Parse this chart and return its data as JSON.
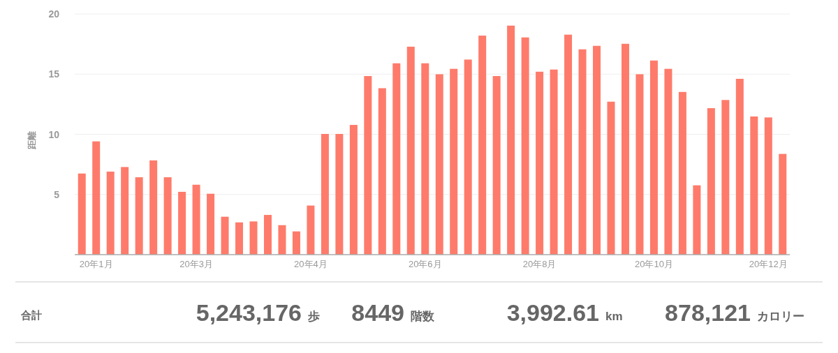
{
  "chart_data": {
    "type": "bar",
    "ylabel": "距離",
    "categories": [
      null,
      "20年1月",
      null,
      null,
      null,
      null,
      null,
      null,
      "20年3月",
      null,
      null,
      null,
      null,
      null,
      null,
      null,
      "20年4月",
      null,
      null,
      null,
      null,
      null,
      null,
      null,
      "20年6月",
      null,
      null,
      null,
      null,
      null,
      null,
      null,
      "20年8月",
      null,
      null,
      null,
      null,
      null,
      null,
      null,
      "20年10月",
      null,
      null,
      null,
      null,
      null,
      null,
      null,
      "20年12月",
      null
    ],
    "values": [
      6.74,
      9.41,
      6.9,
      7.28,
      6.43,
      7.83,
      6.43,
      5.22,
      5.81,
      5.06,
      3.15,
      2.68,
      2.76,
      3.3,
      2.45,
      1.93,
      4.08,
      10.03,
      10.03,
      10.78,
      14.84,
      13.83,
      15.9,
      17.28,
      15.9,
      14.99,
      15.44,
      16.21,
      18.2,
      14.84,
      19.03,
      18.05,
      15.2,
      15.38,
      18.28,
      17.06,
      17.35,
      12.71,
      17.52,
      14.99,
      16.13,
      15.44,
      13.52,
      5.76,
      12.17,
      12.85,
      14.61,
      11.48,
      11.4,
      8.37
    ],
    "color": "#fe7b6b",
    "ylim": [
      0,
      20
    ],
    "yticks": [
      5,
      10,
      15,
      20
    ],
    "grid": "y",
    "annotations": [
      "合計",
      "5,243,176",
      "歩",
      "8449",
      "階数",
      "3,992.61",
      "km",
      "878,121",
      "カロリー"
    ]
  }
}
